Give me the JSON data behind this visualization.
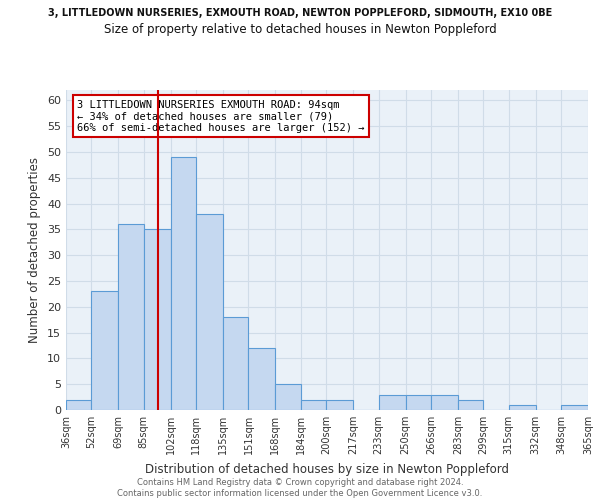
{
  "title_top": "3, LITTLEDOWN NURSERIES, EXMOUTH ROAD, NEWTON POPPLEFORD, SIDMOUTH, EX10 0BE",
  "title_main": "Size of property relative to detached houses in Newton Poppleford",
  "xlabel": "Distribution of detached houses by size in Newton Poppleford",
  "ylabel": "Number of detached properties",
  "bins": [
    36,
    52,
    69,
    85,
    102,
    118,
    135,
    151,
    168,
    184,
    200,
    217,
    233,
    250,
    266,
    283,
    299,
    315,
    332,
    348,
    365
  ],
  "bin_labels": [
    "36sqm",
    "52sqm",
    "69sqm",
    "85sqm",
    "102sqm",
    "118sqm",
    "135sqm",
    "151sqm",
    "168sqm",
    "184sqm",
    "200sqm",
    "217sqm",
    "233sqm",
    "250sqm",
    "266sqm",
    "283sqm",
    "299sqm",
    "315sqm",
    "332sqm",
    "348sqm",
    "365sqm"
  ],
  "values": [
    2,
    23,
    36,
    35,
    49,
    38,
    18,
    12,
    5,
    2,
    2,
    0,
    3,
    3,
    3,
    2,
    0,
    1,
    0,
    1
  ],
  "bar_color": "#c5d8f0",
  "bar_edge_color": "#5b9bd5",
  "vline_x": 94,
  "vline_color": "#cc0000",
  "annotation_line1": "3 LITTLEDOWN NURSERIES EXMOUTH ROAD: 94sqm",
  "annotation_line2": "← 34% of detached houses are smaller (79)",
  "annotation_line3": "66% of semi-detached houses are larger (152) →",
  "annotation_box_color": "#ffffff",
  "annotation_box_edge": "#cc0000",
  "ylim": [
    0,
    62
  ],
  "yticks": [
    0,
    5,
    10,
    15,
    20,
    25,
    30,
    35,
    40,
    45,
    50,
    55,
    60
  ],
  "grid_color": "#d0dce8",
  "bg_color": "#eaf1f8",
  "footer1": "Contains HM Land Registry data © Crown copyright and database right 2024.",
  "footer2": "Contains public sector information licensed under the Open Government Licence v3.0."
}
